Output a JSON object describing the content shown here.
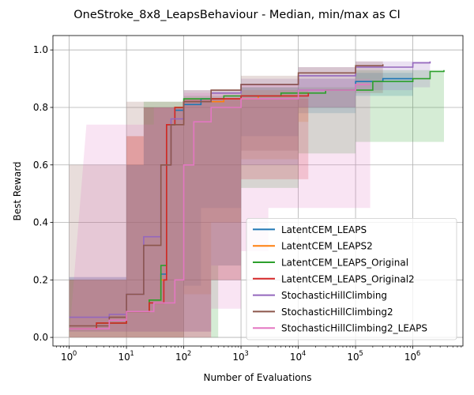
{
  "chart_data": {
    "type": "line",
    "title": "OneStroke_8x8_LeapsBehaviour - Median, min/max as CI",
    "xlabel": "Number of Evaluations",
    "ylabel": "Best Reward",
    "xscale": "log",
    "xlim": [
      0.52,
      7500000
    ],
    "ylim": [
      -0.03,
      1.05
    ],
    "x_ticks": [
      {
        "value": 1,
        "base": "10",
        "exp": "0"
      },
      {
        "value": 10,
        "base": "10",
        "exp": "1"
      },
      {
        "value": 100,
        "base": "10",
        "exp": "2"
      },
      {
        "value": 1000,
        "base": "10",
        "exp": "3"
      },
      {
        "value": 10000,
        "base": "10",
        "exp": "4"
      },
      {
        "value": 100000,
        "base": "10",
        "exp": "5"
      },
      {
        "value": 1000000,
        "base": "10",
        "exp": "6"
      }
    ],
    "y_ticks": [
      "0.0",
      "0.2",
      "0.4",
      "0.6",
      "0.8",
      "1.0"
    ],
    "grid": true,
    "legend_position": "lower-right",
    "series": [
      {
        "name": "LatentCEM_LEAPS",
        "color": "#1f77b4",
        "median": [
          [
            1,
            0.03
          ],
          [
            3,
            0.05
          ],
          [
            10,
            0.09
          ],
          [
            25,
            0.13
          ],
          [
            40,
            0.22
          ],
          [
            50,
            0.74
          ],
          [
            70,
            0.79
          ],
          [
            100,
            0.81
          ],
          [
            200,
            0.83
          ],
          [
            1000,
            0.84
          ],
          [
            10000,
            0.86
          ],
          [
            100000,
            0.89
          ],
          [
            300000,
            0.9
          ],
          [
            1000000,
            0.9
          ]
        ],
        "lower": [
          [
            1,
            0.0
          ],
          [
            10,
            0.0
          ],
          [
            100,
            0.18
          ],
          [
            200,
            0.45
          ],
          [
            1000,
            0.7
          ],
          [
            10000,
            0.78
          ],
          [
            100000,
            0.84
          ],
          [
            1000000,
            0.86
          ]
        ],
        "upper": [
          [
            1,
            0.21
          ],
          [
            10,
            0.6
          ],
          [
            20,
            0.8
          ],
          [
            100,
            0.83
          ],
          [
            1000,
            0.87
          ],
          [
            10000,
            0.9
          ],
          [
            100000,
            0.92
          ],
          [
            1000000,
            0.92
          ]
        ]
      },
      {
        "name": "LatentCEM_LEAPS2",
        "color": "#ff7f0e",
        "median": [
          [
            1,
            0.03
          ],
          [
            3,
            0.05
          ],
          [
            10,
            0.09
          ],
          [
            25,
            0.13
          ],
          [
            40,
            0.2
          ],
          [
            50,
            0.74
          ],
          [
            70,
            0.8
          ],
          [
            100,
            0.82
          ],
          [
            500,
            0.83
          ],
          [
            2000,
            0.84
          ],
          [
            10000,
            0.85
          ],
          [
            15000,
            0.85
          ]
        ],
        "lower": [
          [
            1,
            0.0
          ],
          [
            10,
            0.0
          ],
          [
            100,
            0.15
          ],
          [
            300,
            0.4
          ],
          [
            1000,
            0.62
          ],
          [
            10000,
            0.75
          ],
          [
            15000,
            0.75
          ]
        ],
        "upper": [
          [
            1,
            0.2
          ],
          [
            10,
            0.7
          ],
          [
            20,
            0.8
          ],
          [
            100,
            0.83
          ],
          [
            1000,
            0.86
          ],
          [
            15000,
            0.88
          ]
        ]
      },
      {
        "name": "LatentCEM_LEAPS_Original",
        "color": "#2ca02c",
        "median": [
          [
            1,
            0.03
          ],
          [
            3,
            0.05
          ],
          [
            10,
            0.09
          ],
          [
            25,
            0.13
          ],
          [
            40,
            0.25
          ],
          [
            50,
            0.74
          ],
          [
            70,
            0.8
          ],
          [
            100,
            0.83
          ],
          [
            500,
            0.84
          ],
          [
            5000,
            0.85
          ],
          [
            30000,
            0.86
          ],
          [
            200000,
            0.89
          ],
          [
            1000000,
            0.9
          ],
          [
            2000000,
            0.925
          ],
          [
            3500000,
            0.93
          ]
        ],
        "lower": [
          [
            1,
            0.0
          ],
          [
            100,
            0.0
          ],
          [
            400,
            0.25
          ],
          [
            1000,
            0.52
          ],
          [
            10000,
            0.64
          ],
          [
            100000,
            0.68
          ],
          [
            3500000,
            0.68
          ]
        ],
        "upper": [
          [
            1,
            0.2
          ],
          [
            10,
            0.6
          ],
          [
            20,
            0.82
          ],
          [
            100,
            0.84
          ],
          [
            1000,
            0.87
          ],
          [
            100000,
            0.93
          ],
          [
            3500000,
            0.96
          ]
        ]
      },
      {
        "name": "LatentCEM_LEAPS_Original2",
        "color": "#d62728",
        "median": [
          [
            1,
            0.03
          ],
          [
            3,
            0.05
          ],
          [
            10,
            0.09
          ],
          [
            25,
            0.12
          ],
          [
            45,
            0.2
          ],
          [
            50,
            0.74
          ],
          [
            70,
            0.8
          ],
          [
            100,
            0.82
          ],
          [
            300,
            0.83
          ],
          [
            1000,
            0.84
          ],
          [
            15000,
            0.85
          ]
        ],
        "lower": [
          [
            1,
            0.0
          ],
          [
            100,
            0.0
          ],
          [
            300,
            0.2
          ],
          [
            1000,
            0.55
          ],
          [
            15000,
            0.6
          ]
        ],
        "upper": [
          [
            1,
            0.2
          ],
          [
            10,
            0.7
          ],
          [
            20,
            0.8
          ],
          [
            100,
            0.83
          ],
          [
            15000,
            0.87
          ]
        ]
      },
      {
        "name": "StochasticHillClimbing",
        "color": "#9467bd",
        "median": [
          [
            1,
            0.07
          ],
          [
            5,
            0.08
          ],
          [
            10,
            0.15
          ],
          [
            20,
            0.35
          ],
          [
            40,
            0.6
          ],
          [
            60,
            0.76
          ],
          [
            100,
            0.82
          ],
          [
            300,
            0.85
          ],
          [
            1000,
            0.88
          ],
          [
            10000,
            0.91
          ],
          [
            100000,
            0.94
          ],
          [
            1000000,
            0.955
          ],
          [
            2000000,
            0.96
          ]
        ],
        "lower": [
          [
            1,
            0.02
          ],
          [
            100,
            0.02
          ],
          [
            300,
            0.25
          ],
          [
            1000,
            0.6
          ],
          [
            10000,
            0.8
          ],
          [
            100000,
            0.86
          ],
          [
            1000000,
            0.87
          ],
          [
            2000000,
            0.87
          ]
        ],
        "upper": [
          [
            1,
            0.21
          ],
          [
            10,
            0.6
          ],
          [
            20,
            0.8
          ],
          [
            100,
            0.86
          ],
          [
            1000,
            0.9
          ],
          [
            10000,
            0.94
          ],
          [
            100000,
            0.96
          ],
          [
            2000000,
            0.97
          ]
        ]
      },
      {
        "name": "StochasticHillClimbing2",
        "color": "#8c564b",
        "median": [
          [
            1,
            0.04
          ],
          [
            5,
            0.07
          ],
          [
            10,
            0.15
          ],
          [
            20,
            0.32
          ],
          [
            40,
            0.6
          ],
          [
            60,
            0.74
          ],
          [
            100,
            0.82
          ],
          [
            300,
            0.86
          ],
          [
            1000,
            0.88
          ],
          [
            10000,
            0.92
          ],
          [
            100000,
            0.945
          ],
          [
            300000,
            0.95
          ]
        ],
        "lower": [
          [
            1,
            0.02
          ],
          [
            100,
            0.02
          ],
          [
            300,
            0.2
          ],
          [
            1000,
            0.65
          ],
          [
            10000,
            0.8
          ],
          [
            100000,
            0.85
          ],
          [
            300000,
            0.85
          ]
        ],
        "upper": [
          [
            1,
            0.6
          ],
          [
            10,
            0.82
          ],
          [
            100,
            0.86
          ],
          [
            1000,
            0.91
          ],
          [
            10000,
            0.94
          ],
          [
            100000,
            0.96
          ],
          [
            300000,
            0.96
          ]
        ]
      },
      {
        "name": "StochasticHillClimbing2_LEAPS",
        "color": "#e377c2",
        "median": [
          [
            1,
            0.03
          ],
          [
            5,
            0.06
          ],
          [
            10,
            0.09
          ],
          [
            30,
            0.12
          ],
          [
            70,
            0.2
          ],
          [
            100,
            0.6
          ],
          [
            150,
            0.75
          ],
          [
            300,
            0.8
          ],
          [
            1000,
            0.83
          ],
          [
            10000,
            0.86
          ],
          [
            100000,
            0.88
          ],
          [
            180000,
            0.88
          ]
        ],
        "lower": [
          [
            1,
            0.0
          ],
          [
            100,
            0.0
          ],
          [
            300,
            0.1
          ],
          [
            1000,
            0.3
          ],
          [
            3000,
            0.45
          ],
          [
            180000,
            0.49
          ]
        ],
        "upper": [
          [
            2,
            0.74
          ],
          [
            10,
            0.74
          ],
          [
            30,
            0.8
          ],
          [
            100,
            0.85
          ],
          [
            1000,
            0.88
          ],
          [
            10000,
            0.9
          ],
          [
            180000,
            0.91
          ]
        ]
      }
    ]
  }
}
